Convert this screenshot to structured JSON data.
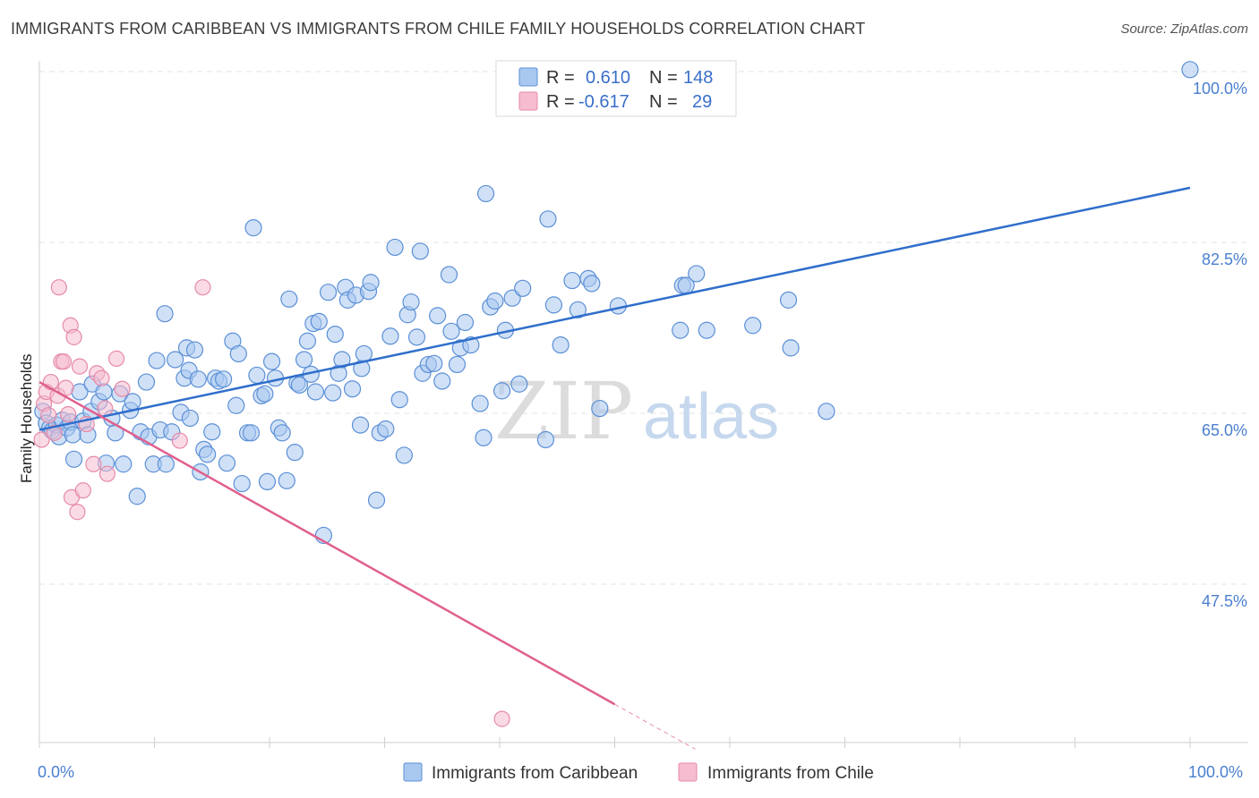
{
  "title": "IMMIGRANTS FROM CARIBBEAN VS IMMIGRANTS FROM CHILE FAMILY HOUSEHOLDS CORRELATION CHART",
  "source": "Source: ZipAtlas.com",
  "watermark": {
    "part1": "ZIP",
    "part2": "atlas"
  },
  "colors": {
    "caribbean_fill": "#a9c8f0",
    "caribbean_stroke": "#5b8fd6",
    "caribbean_line": "#2f6ecb",
    "chile_fill": "#f6bccf",
    "chile_stroke": "#e58aa8",
    "chile_line": "#e0608f",
    "tick_label": "#4a7fd0",
    "grid": "#e3e3e3"
  },
  "legend": {
    "rows": [
      {
        "r_label": "R =",
        "r_value": "0.610",
        "n_label": "N =",
        "n_value": "148"
      },
      {
        "r_label": "R =",
        "r_value": "-0.617",
        "n_label": "N =",
        "n_value": "29"
      }
    ]
  },
  "chart_data": {
    "type": "scatter",
    "title": "IMMIGRANTS FROM CARIBBEAN VS IMMIGRANTS FROM CHILE FAMILY HOUSEHOLDS CORRELATION CHART",
    "xlabel": "",
    "ylabel": "Family Households",
    "xlim": [
      0,
      100
    ],
    "ylim": [
      33,
      102
    ],
    "x_tick_labels": [
      "0.0%",
      "100.0%"
    ],
    "y_ticks": [
      {
        "value": 47.5,
        "label": "47.5%"
      },
      {
        "value": 65.0,
        "label": "65.0%"
      },
      {
        "value": 82.5,
        "label": "82.5%"
      },
      {
        "value": 100.0,
        "label": "100.0%"
      }
    ],
    "grid": true,
    "legend_position": "top-center",
    "bottom_legend": [
      "Immigrants from Caribbean",
      "Immigrants from Chile"
    ],
    "series": [
      {
        "name": "Immigrants from Caribbean",
        "r": 0.61,
        "n": 148,
        "trend": {
          "x": [
            0,
            100
          ],
          "y": [
            63.3,
            88.1
          ]
        },
        "points": [
          [
            0.3,
            65.2
          ],
          [
            0.6,
            64.0
          ],
          [
            0.9,
            63.5
          ],
          [
            1.1,
            63.2
          ],
          [
            1.5,
            63.8
          ],
          [
            1.7,
            62.6
          ],
          [
            2.0,
            64.3
          ],
          [
            2.4,
            63.5
          ],
          [
            2.7,
            64.1
          ],
          [
            2.9,
            62.8
          ],
          [
            3.0,
            60.3
          ],
          [
            3.5,
            67.2
          ],
          [
            3.8,
            64.2
          ],
          [
            4.2,
            62.8
          ],
          [
            4.5,
            65.2
          ],
          [
            4.6,
            68.0
          ],
          [
            5.2,
            66.2
          ],
          [
            5.6,
            67.2
          ],
          [
            5.8,
            59.9
          ],
          [
            6.3,
            64.5
          ],
          [
            6.6,
            63.0
          ],
          [
            7.0,
            67.0
          ],
          [
            7.3,
            59.8
          ],
          [
            7.9,
            65.3
          ],
          [
            8.1,
            66.2
          ],
          [
            8.5,
            56.5
          ],
          [
            8.8,
            63.1
          ],
          [
            9.3,
            68.2
          ],
          [
            9.5,
            62.6
          ],
          [
            9.9,
            59.8
          ],
          [
            10.2,
            70.4
          ],
          [
            10.5,
            63.3
          ],
          [
            10.9,
            75.2
          ],
          [
            11.0,
            59.8
          ],
          [
            11.5,
            63.1
          ],
          [
            11.8,
            70.5
          ],
          [
            12.3,
            65.1
          ],
          [
            12.6,
            68.6
          ],
          [
            12.8,
            71.7
          ],
          [
            13.0,
            69.4
          ],
          [
            13.1,
            64.5
          ],
          [
            13.5,
            71.5
          ],
          [
            13.8,
            68.5
          ],
          [
            14.0,
            59.0
          ],
          [
            14.3,
            61.3
          ],
          [
            14.6,
            60.8
          ],
          [
            15.0,
            63.1
          ],
          [
            15.3,
            68.6
          ],
          [
            15.6,
            68.3
          ],
          [
            16.0,
            68.5
          ],
          [
            16.3,
            59.9
          ],
          [
            16.8,
            72.4
          ],
          [
            17.1,
            65.8
          ],
          [
            17.3,
            71.1
          ],
          [
            17.6,
            57.8
          ],
          [
            18.1,
            63.0
          ],
          [
            18.4,
            63.0
          ],
          [
            18.6,
            84.0
          ],
          [
            18.9,
            68.9
          ],
          [
            19.3,
            66.8
          ],
          [
            19.6,
            67.0
          ],
          [
            19.8,
            58.0
          ],
          [
            20.2,
            70.3
          ],
          [
            20.5,
            68.6
          ],
          [
            20.8,
            63.5
          ],
          [
            21.1,
            63.0
          ],
          [
            21.5,
            58.1
          ],
          [
            21.7,
            76.7
          ],
          [
            22.2,
            61.0
          ],
          [
            22.4,
            68.1
          ],
          [
            22.6,
            67.9
          ],
          [
            23.0,
            70.5
          ],
          [
            23.3,
            72.4
          ],
          [
            23.6,
            69.0
          ],
          [
            23.8,
            74.2
          ],
          [
            24.0,
            67.2
          ],
          [
            24.3,
            74.4
          ],
          [
            24.7,
            52.5
          ],
          [
            25.1,
            77.4
          ],
          [
            25.5,
            67.1
          ],
          [
            25.7,
            73.1
          ],
          [
            26.0,
            69.1
          ],
          [
            26.3,
            70.5
          ],
          [
            26.6,
            77.9
          ],
          [
            26.8,
            76.6
          ],
          [
            27.2,
            67.5
          ],
          [
            27.5,
            77.1
          ],
          [
            27.9,
            63.8
          ],
          [
            28.0,
            69.6
          ],
          [
            28.2,
            71.1
          ],
          [
            28.6,
            77.5
          ],
          [
            28.8,
            78.4
          ],
          [
            29.3,
            56.1
          ],
          [
            29.6,
            63.0
          ],
          [
            30.1,
            63.4
          ],
          [
            30.5,
            72.9
          ],
          [
            30.9,
            82.0
          ],
          [
            31.3,
            66.4
          ],
          [
            31.7,
            60.7
          ],
          [
            32.0,
            75.1
          ],
          [
            32.3,
            76.4
          ],
          [
            32.8,
            72.8
          ],
          [
            33.1,
            81.6
          ],
          [
            33.3,
            69.1
          ],
          [
            33.8,
            70.0
          ],
          [
            34.3,
            70.1
          ],
          [
            34.6,
            75.0
          ],
          [
            35.0,
            68.3
          ],
          [
            35.6,
            79.2
          ],
          [
            35.8,
            73.4
          ],
          [
            36.3,
            70.0
          ],
          [
            36.6,
            71.7
          ],
          [
            37.0,
            74.3
          ],
          [
            37.5,
            72.0
          ],
          [
            38.3,
            66.0
          ],
          [
            38.6,
            62.5
          ],
          [
            38.8,
            87.5
          ],
          [
            39.2,
            75.9
          ],
          [
            39.6,
            76.5
          ],
          [
            40.2,
            67.3
          ],
          [
            40.5,
            73.5
          ],
          [
            41.1,
            76.8
          ],
          [
            41.7,
            68.0
          ],
          [
            42.0,
            77.8
          ],
          [
            44.0,
            62.3
          ],
          [
            44.7,
            76.1
          ],
          [
            44.2,
            84.9
          ],
          [
            45.3,
            72.0
          ],
          [
            46.3,
            78.6
          ],
          [
            46.8,
            75.6
          ],
          [
            47.7,
            78.8
          ],
          [
            48.0,
            78.3
          ],
          [
            48.7,
            65.5
          ],
          [
            50.3,
            76.0
          ],
          [
            55.9,
            78.1
          ],
          [
            55.7,
            73.5
          ],
          [
            56.2,
            78.1
          ],
          [
            57.1,
            79.3
          ],
          [
            58.0,
            73.5
          ],
          [
            62.0,
            74.0
          ],
          [
            65.1,
            76.6
          ],
          [
            65.3,
            71.7
          ],
          [
            68.4,
            65.2
          ],
          [
            100.0,
            100.2
          ]
        ]
      },
      {
        "name": "Immigrants from Chile",
        "r": -0.617,
        "n": 29,
        "trend": {
          "x": [
            0,
            50
          ],
          "y": [
            68.2,
            35.2
          ]
        },
        "trend_dashed_extension": {
          "x": [
            50,
            57
          ],
          "y": [
            35.2,
            30.6
          ]
        },
        "points": [
          [
            0.2,
            62.3
          ],
          [
            0.4,
            66.0
          ],
          [
            0.6,
            67.2
          ],
          [
            0.8,
            64.8
          ],
          [
            1.0,
            68.2
          ],
          [
            1.3,
            63.0
          ],
          [
            1.6,
            66.8
          ],
          [
            1.9,
            70.3
          ],
          [
            2.1,
            70.3
          ],
          [
            2.3,
            67.6
          ],
          [
            2.5,
            64.9
          ],
          [
            2.7,
            74.0
          ],
          [
            2.8,
            56.4
          ],
          [
            3.0,
            72.8
          ],
          [
            3.3,
            54.9
          ],
          [
            3.5,
            69.8
          ],
          [
            3.8,
            57.1
          ],
          [
            4.1,
            63.9
          ],
          [
            4.7,
            59.8
          ],
          [
            5.0,
            69.1
          ],
          [
            5.4,
            68.6
          ],
          [
            5.7,
            65.5
          ],
          [
            5.9,
            58.8
          ],
          [
            6.7,
            70.6
          ],
          [
            7.2,
            67.5
          ],
          [
            1.7,
            77.9
          ],
          [
            12.2,
            62.2
          ],
          [
            14.2,
            77.9
          ],
          [
            40.2,
            33.7
          ]
        ]
      }
    ]
  }
}
